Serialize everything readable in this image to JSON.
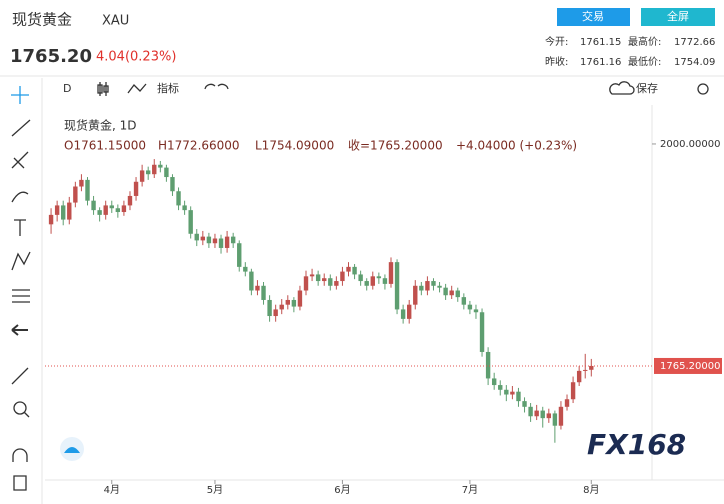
{
  "header": {
    "title": "现货黄金",
    "symbol": "XAU",
    "price": "1765.20",
    "change": "4.04(0.23%)",
    "buttons": [
      "交易",
      "全屏"
    ],
    "stats": [
      {
        "label": "今开:",
        "value": "1761.15"
      },
      {
        "label": "最高价:",
        "value": "1772.66"
      },
      {
        "label": "昨收:",
        "value": "1761.16"
      },
      {
        "label": "最低价:",
        "value": "1754.09"
      }
    ]
  },
  "toolbar": {
    "interval": "D",
    "indicator": "指标",
    "save": "保存"
  },
  "legend": {
    "name": "现货黄金, 1D",
    "values": [
      "O1761.15000",
      "H1772.66000",
      "L1754.09000",
      "收=1765.20000",
      "+4.04000 (+0.23%)"
    ]
  },
  "watermark": "FX168",
  "chart_data": {
    "type": "candlestick",
    "up_color": "#c0504d",
    "down_color": "#5e9e70",
    "last_color": "#e0524d",
    "ylim": [
      1646.7,
      2041.2
    ],
    "yticks": [
      {
        "value": 2000,
        "label": "2000.00000"
      }
    ],
    "last_price": {
      "value": 1765.2,
      "label": "1765.20000"
    },
    "xlim": [
      -1,
      99
    ],
    "xticks": [
      {
        "value": 10,
        "label": "4月"
      },
      {
        "value": 27,
        "label": "5月"
      },
      {
        "value": 48,
        "label": "6月"
      },
      {
        "value": 69,
        "label": "7月"
      },
      {
        "value": 89,
        "label": "8月"
      }
    ],
    "ohlc": [
      [
        1915,
        1932,
        1905,
        1925
      ],
      [
        1925,
        1940,
        1918,
        1935
      ],
      [
        1935,
        1940,
        1914,
        1920
      ],
      [
        1920,
        1944,
        1915,
        1938
      ],
      [
        1938,
        1960,
        1933,
        1955
      ],
      [
        1955,
        1968,
        1950,
        1962
      ],
      [
        1962,
        1965,
        1935,
        1940
      ],
      [
        1940,
        1945,
        1925,
        1930
      ],
      [
        1930,
        1933,
        1918,
        1925
      ],
      [
        1925,
        1940,
        1920,
        1935
      ],
      [
        1935,
        1940,
        1927,
        1932
      ],
      [
        1932,
        1936,
        1922,
        1928
      ],
      [
        1928,
        1940,
        1924,
        1935
      ],
      [
        1935,
        1950,
        1930,
        1945
      ],
      [
        1945,
        1965,
        1940,
        1960
      ],
      [
        1960,
        1978,
        1955,
        1972
      ],
      [
        1972,
        1976,
        1962,
        1968
      ],
      [
        1968,
        1984,
        1964,
        1978
      ],
      [
        1978,
        1982,
        1970,
        1975
      ],
      [
        1975,
        1978,
        1960,
        1965
      ],
      [
        1965,
        1968,
        1945,
        1950
      ],
      [
        1950,
        1954,
        1930,
        1935
      ],
      [
        1935,
        1940,
        1925,
        1930
      ],
      [
        1930,
        1934,
        1900,
        1905
      ],
      [
        1905,
        1910,
        1892,
        1898
      ],
      [
        1898,
        1908,
        1893,
        1902
      ],
      [
        1902,
        1906,
        1890,
        1895
      ],
      [
        1895,
        1905,
        1890,
        1900
      ],
      [
        1900,
        1904,
        1884,
        1890
      ],
      [
        1890,
        1908,
        1885,
        1902
      ],
      [
        1902,
        1906,
        1890,
        1895
      ],
      [
        1895,
        1898,
        1865,
        1870
      ],
      [
        1870,
        1875,
        1860,
        1865
      ],
      [
        1865,
        1868,
        1840,
        1845
      ],
      [
        1845,
        1856,
        1840,
        1850
      ],
      [
        1850,
        1854,
        1830,
        1835
      ],
      [
        1835,
        1840,
        1812,
        1818
      ],
      [
        1818,
        1830,
        1812,
        1825
      ],
      [
        1825,
        1836,
        1820,
        1830
      ],
      [
        1830,
        1840,
        1825,
        1835
      ],
      [
        1835,
        1838,
        1822,
        1828
      ],
      [
        1828,
        1850,
        1824,
        1845
      ],
      [
        1845,
        1866,
        1840,
        1860
      ],
      [
        1860,
        1868,
        1855,
        1862
      ],
      [
        1862,
        1866,
        1850,
        1855
      ],
      [
        1855,
        1863,
        1850,
        1858
      ],
      [
        1858,
        1862,
        1845,
        1850
      ],
      [
        1850,
        1860,
        1846,
        1855
      ],
      [
        1855,
        1870,
        1850,
        1865
      ],
      [
        1865,
        1875,
        1860,
        1870
      ],
      [
        1870,
        1873,
        1857,
        1862
      ],
      [
        1862,
        1866,
        1850,
        1855
      ],
      [
        1855,
        1858,
        1845,
        1850
      ],
      [
        1850,
        1865,
        1846,
        1860
      ],
      [
        1860,
        1864,
        1852,
        1858
      ],
      [
        1858,
        1862,
        1846,
        1852
      ],
      [
        1852,
        1880,
        1848,
        1875
      ],
      [
        1875,
        1878,
        1820,
        1825
      ],
      [
        1825,
        1830,
        1810,
        1815
      ],
      [
        1815,
        1835,
        1810,
        1830
      ],
      [
        1830,
        1856,
        1825,
        1850
      ],
      [
        1850,
        1854,
        1840,
        1845
      ],
      [
        1845,
        1860,
        1840,
        1855
      ],
      [
        1855,
        1858,
        1845,
        1850
      ],
      [
        1850,
        1854,
        1843,
        1848
      ],
      [
        1848,
        1852,
        1835,
        1840
      ],
      [
        1840,
        1850,
        1836,
        1845
      ],
      [
        1845,
        1848,
        1833,
        1838
      ],
      [
        1838,
        1842,
        1825,
        1830
      ],
      [
        1830,
        1834,
        1820,
        1825
      ],
      [
        1825,
        1830,
        1815,
        1822
      ],
      [
        1822,
        1826,
        1775,
        1780
      ],
      [
        1780,
        1785,
        1745,
        1752
      ],
      [
        1752,
        1758,
        1740,
        1745
      ],
      [
        1745,
        1750,
        1734,
        1740
      ],
      [
        1740,
        1745,
        1728,
        1735
      ],
      [
        1735,
        1744,
        1730,
        1738
      ],
      [
        1738,
        1742,
        1722,
        1728
      ],
      [
        1728,
        1732,
        1716,
        1722
      ],
      [
        1722,
        1726,
        1706,
        1712
      ],
      [
        1712,
        1724,
        1708,
        1718
      ],
      [
        1718,
        1722,
        1700,
        1710
      ],
      [
        1710,
        1720,
        1705,
        1715
      ],
      [
        1715,
        1718,
        1684,
        1702
      ],
      [
        1702,
        1728,
        1698,
        1722
      ],
      [
        1722,
        1735,
        1718,
        1730
      ],
      [
        1730,
        1754,
        1726,
        1748
      ],
      [
        1748,
        1765,
        1744,
        1760
      ],
      [
        1760,
        1778,
        1752,
        1761
      ],
      [
        1761.15,
        1772.66,
        1754.09,
        1765.2
      ]
    ]
  }
}
